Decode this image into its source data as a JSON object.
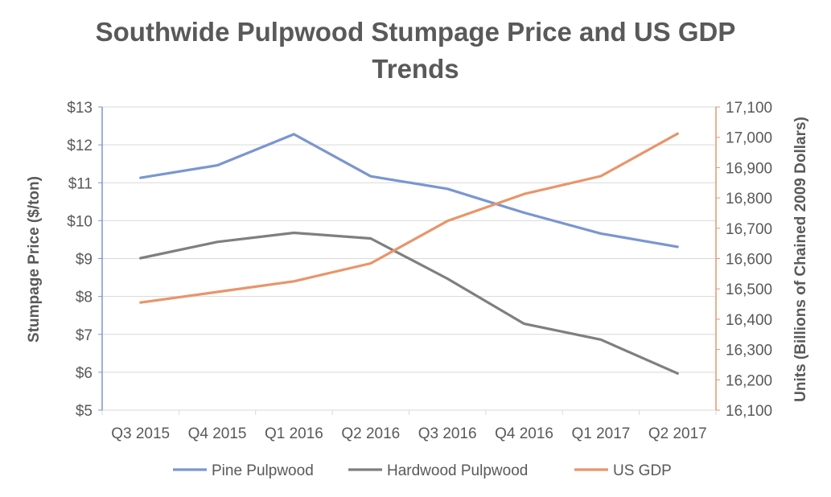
{
  "chart_data": {
    "type": "line",
    "title_line1": "Southwide Pulpwood Stumpage Price and US GDP",
    "title_line2": "Trends",
    "categories": [
      "Q3 2015",
      "Q4 2015",
      "Q1 2016",
      "Q2 2016",
      "Q3 2016",
      "Q4 2016",
      "Q1 2017",
      "Q2 2017"
    ],
    "ylabel_left": "Stumpage Price ($/ton)",
    "ylabel_right": "Units (Billions of Chained 2009 Dollars)",
    "ylim_left": [
      5,
      13
    ],
    "ylim_right": [
      16100,
      17100
    ],
    "yticks_left": [
      5,
      6,
      7,
      8,
      9,
      10,
      11,
      12,
      13
    ],
    "ytick_labels_left": [
      "$5",
      "$6",
      "$7",
      "$8",
      "$9",
      "$10",
      "$11",
      "$12",
      "$13"
    ],
    "yticks_right": [
      16100,
      16200,
      16300,
      16400,
      16500,
      16600,
      16700,
      16800,
      16900,
      17000,
      17100
    ],
    "ytick_labels_right": [
      "16,100",
      "16,200",
      "16,300",
      "16,400",
      "16,500",
      "16,600",
      "16,700",
      "16,800",
      "16,900",
      "17,000",
      "17,100"
    ],
    "grid": true,
    "legend_position": "bottom",
    "series": [
      {
        "name": "Pine Pulpwood",
        "axis": "left",
        "color": "#7A96D0",
        "values": [
          11.13,
          11.46,
          12.28,
          11.17,
          10.84,
          10.21,
          9.66,
          9.31
        ]
      },
      {
        "name": "Hardwood Pulpwood",
        "axis": "left",
        "color": "#7F7F7F",
        "values": [
          9.01,
          9.44,
          9.68,
          9.53,
          8.47,
          7.28,
          6.86,
          5.97
        ]
      },
      {
        "name": "US GDP",
        "axis": "right",
        "color": "#E8956A",
        "values": [
          16455,
          16490,
          16525,
          16584,
          16724,
          16813,
          16872,
          17012
        ]
      }
    ]
  }
}
